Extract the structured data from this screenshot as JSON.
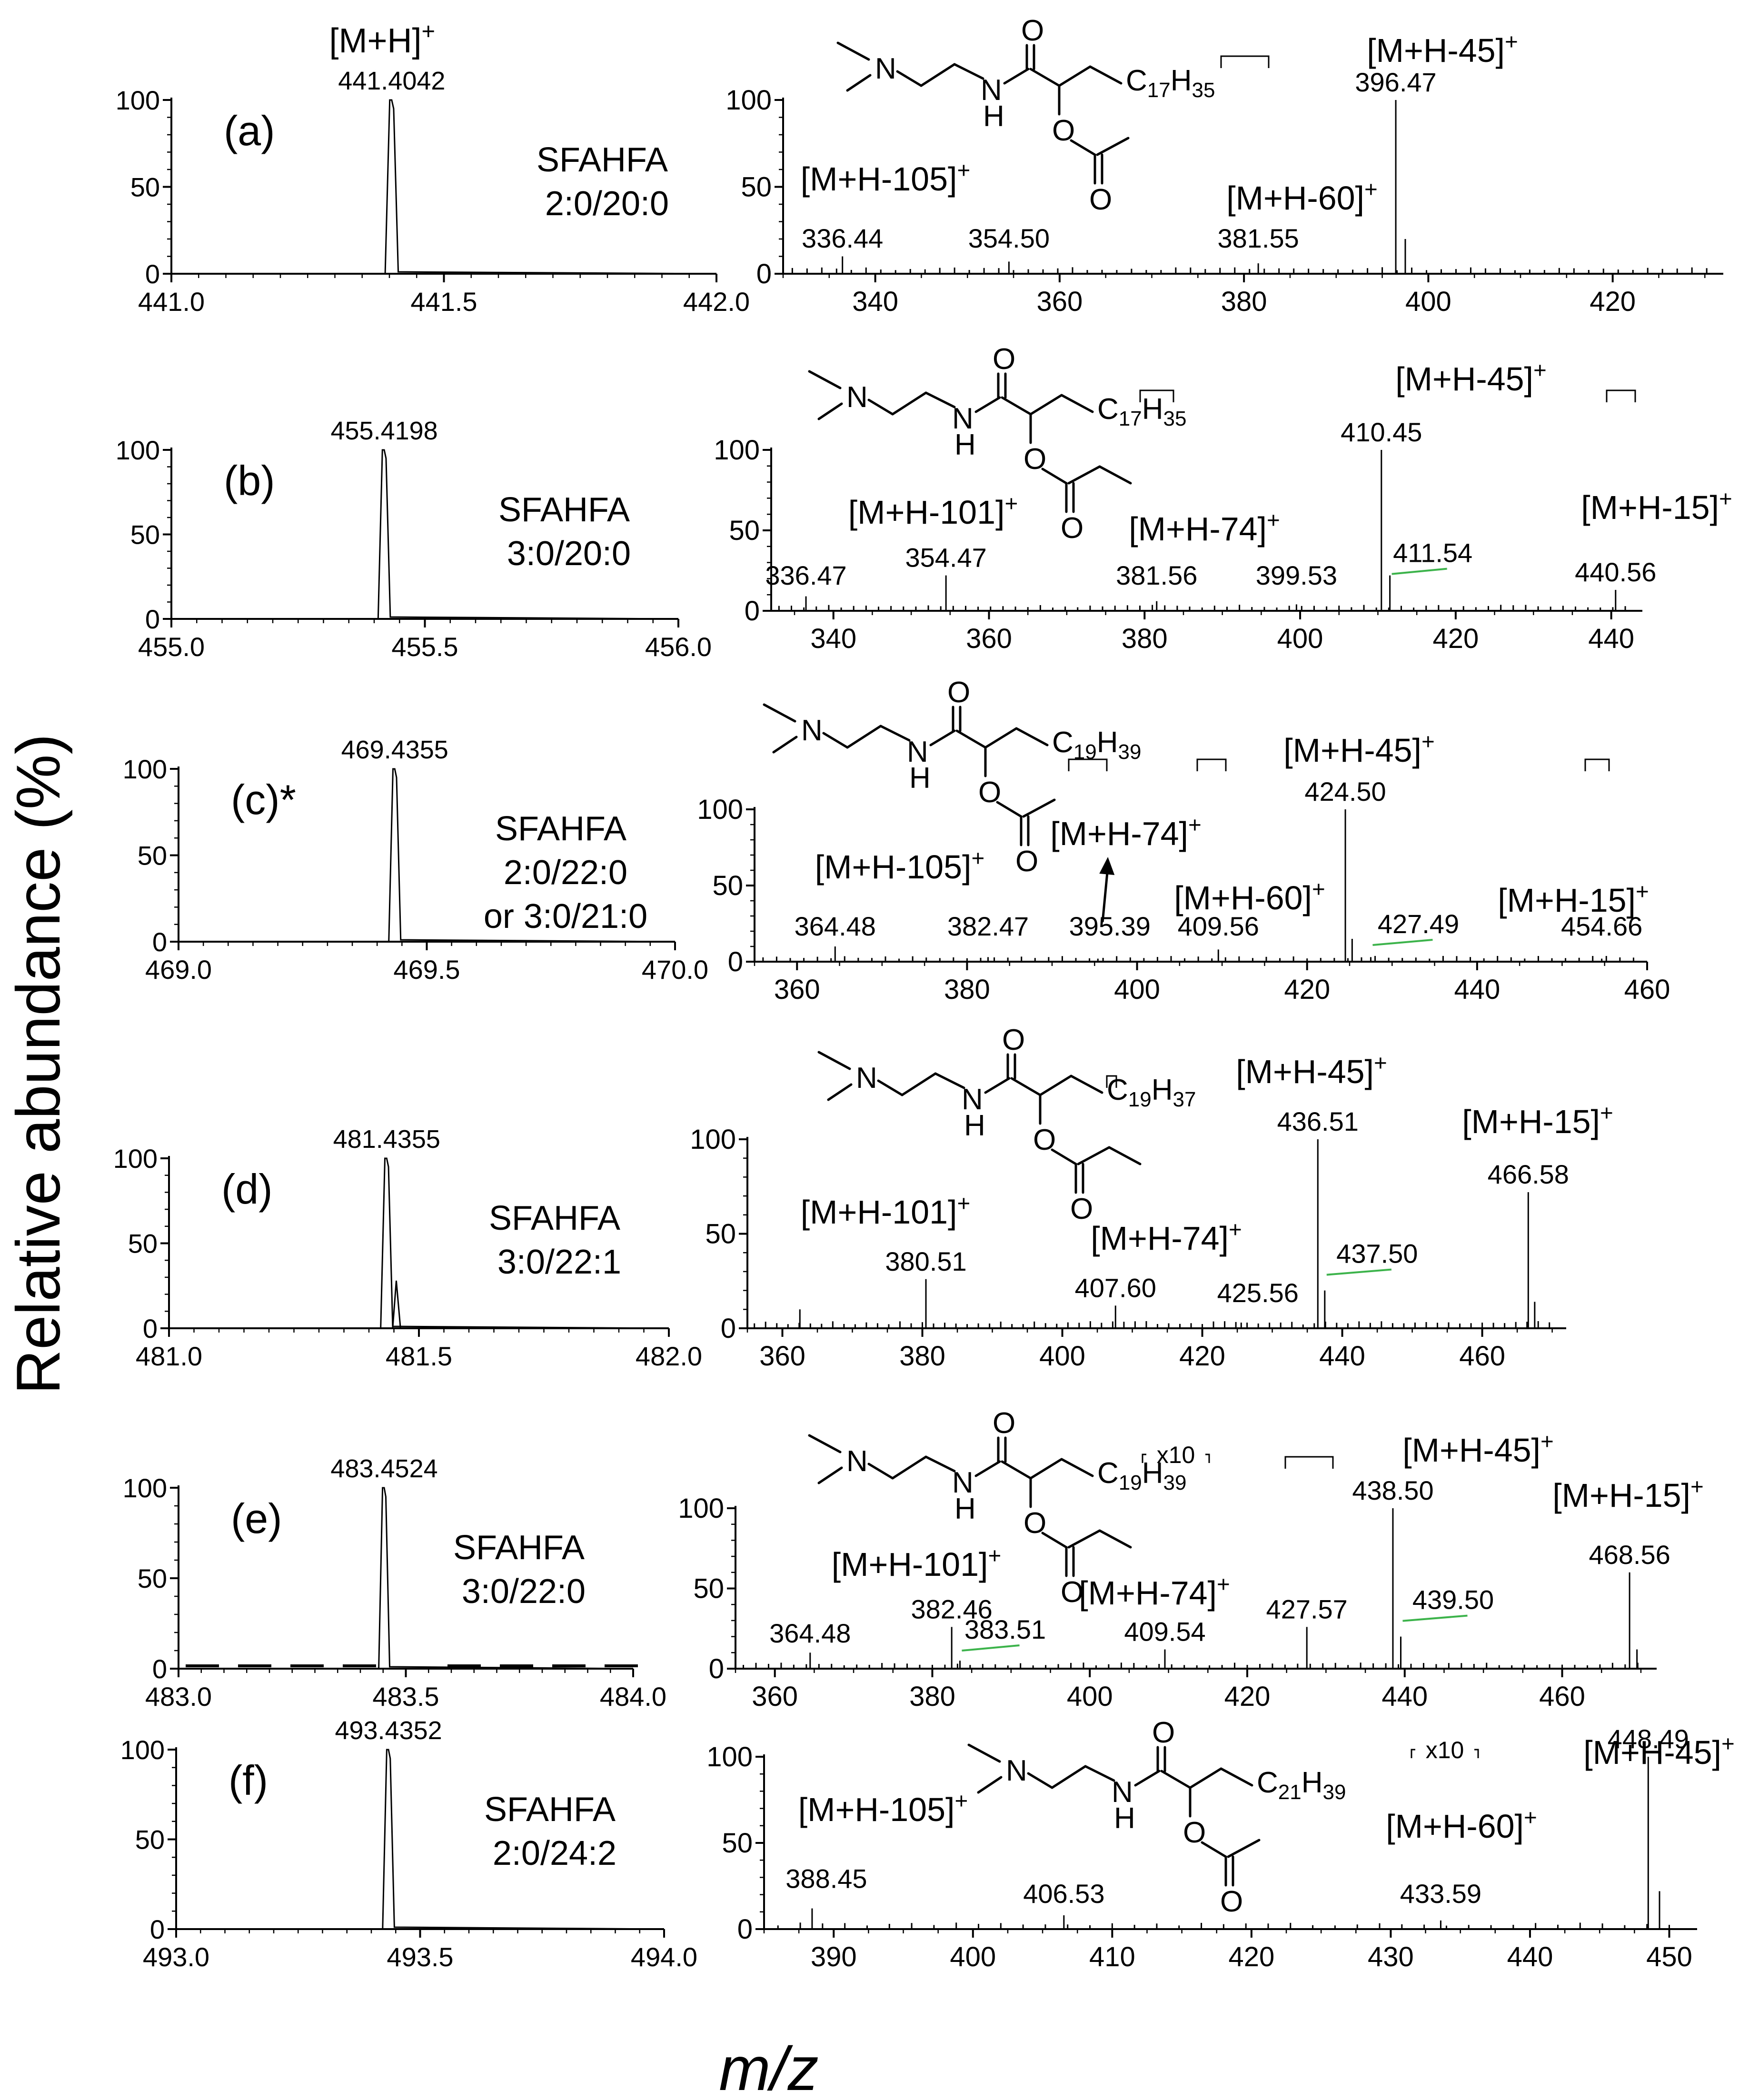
{
  "figure": {
    "ylabel": "Relative abundance (%)",
    "xlabel": "m/z"
  },
  "chart_data": [
    {
      "type": "line",
      "panel": "(a)",
      "view": "precursor",
      "peak_label": "441.4042",
      "ion_label": "[M+H]+",
      "peak_mz": 441.4042,
      "compound": [
        "SFAHFA",
        "2:0/20:0"
      ],
      "xlim": [
        441.0,
        442.0
      ],
      "xticks": [
        "441.0",
        "441.5",
        "442.0"
      ],
      "ylim": [
        0,
        100
      ],
      "yticks": [
        "0",
        "50",
        "100"
      ]
    },
    {
      "type": "bar",
      "panel": "(a)",
      "view": "fragments",
      "xlim": [
        330,
        432
      ],
      "xticks": [
        340,
        360,
        380,
        400,
        420
      ],
      "ylim": [
        0,
        100
      ],
      "yticks": [
        "0",
        "50",
        "100"
      ],
      "structure": {
        "chain": "C17H35",
        "acyl": "acetyl"
      },
      "peaks": [
        {
          "mz": 336.44,
          "intensity": 10,
          "label": "336.44"
        },
        {
          "mz": 354.5,
          "intensity": 7,
          "label": "354.50"
        },
        {
          "mz": 381.55,
          "intensity": 6,
          "label": "381.55"
        },
        {
          "mz": 396.47,
          "intensity": 100,
          "label": "396.47"
        },
        {
          "mz": 397.5,
          "intensity": 20,
          "label": ""
        }
      ],
      "annotations": [
        {
          "text": "[M+H-105]+",
          "mz": 336.44
        },
        {
          "text": "[M+H-60]+",
          "mz": 381.55
        },
        {
          "text": "[M+H-45]+",
          "mz": 396.47
        }
      ]
    },
    {
      "type": "line",
      "panel": "(b)",
      "view": "precursor",
      "peak_label": "455.4198",
      "ion_label": "",
      "peak_mz": 455.4198,
      "compound": [
        "SFAHFA",
        "3:0/20:0"
      ],
      "xlim": [
        455.0,
        456.0
      ],
      "xticks": [
        "455.0",
        "455.5",
        "456.0"
      ],
      "ylim": [
        0,
        100
      ],
      "yticks": [
        "0",
        "50",
        "100"
      ]
    },
    {
      "type": "bar",
      "panel": "(b)",
      "view": "fragments",
      "xlim": [
        332,
        444
      ],
      "xticks": [
        340,
        360,
        380,
        400,
        420,
        440
      ],
      "ylim": [
        0,
        100
      ],
      "yticks": [
        "0",
        "50",
        "100"
      ],
      "structure": {
        "chain": "C17H35",
        "acyl": "propionyl"
      },
      "peaks": [
        {
          "mz": 336.47,
          "intensity": 9,
          "label": "336.47"
        },
        {
          "mz": 354.47,
          "intensity": 22,
          "label": "354.47"
        },
        {
          "mz": 381.56,
          "intensity": 6,
          "label": "381.56"
        },
        {
          "mz": 399.53,
          "intensity": 4,
          "label": "399.53"
        },
        {
          "mz": 410.45,
          "intensity": 100,
          "label": "410.45"
        },
        {
          "mz": 411.54,
          "intensity": 22,
          "label": "411.54"
        },
        {
          "mz": 440.56,
          "intensity": 13,
          "label": "440.56"
        }
      ],
      "annotations": [
        {
          "text": "[M+H-101]+",
          "mz": 354.47
        },
        {
          "text": "[M+H-74]+",
          "mz": 381.56
        },
        {
          "text": "[M+H-45]+",
          "mz": 410.45
        },
        {
          "text": "[M+H-15]+",
          "mz": 440.56
        }
      ]
    },
    {
      "type": "line",
      "panel": "(c)*",
      "view": "precursor",
      "peak_label": "469.4355",
      "ion_label": "",
      "peak_mz": 469.4355,
      "compound": [
        "SFAHFA",
        "2:0/22:0",
        "or 3:0/21:0"
      ],
      "xlim": [
        469.0,
        470.0
      ],
      "xticks": [
        "469.0",
        "469.5",
        "470.0"
      ],
      "ylim": [
        0,
        100
      ],
      "yticks": [
        "0",
        "50",
        "100"
      ]
    },
    {
      "type": "bar",
      "panel": "(c)*",
      "view": "fragments",
      "xlim": [
        355,
        460
      ],
      "xticks": [
        360,
        380,
        400,
        420,
        440,
        460
      ],
      "ylim": [
        0,
        100
      ],
      "yticks": [
        "0",
        "50",
        "100"
      ],
      "structure": {
        "chain": "C19H39",
        "acyl": "acetyl"
      },
      "peaks": [
        {
          "mz": 364.48,
          "intensity": 10,
          "label": "364.48"
        },
        {
          "mz": 382.47,
          "intensity": 3,
          "label": "382.47"
        },
        {
          "mz": 395.39,
          "intensity": 2,
          "label": "395.39"
        },
        {
          "mz": 409.56,
          "intensity": 8,
          "label": "409.56"
        },
        {
          "mz": 424.5,
          "intensity": 100,
          "label": "424.50"
        },
        {
          "mz": 425.3,
          "intensity": 15,
          "label": ""
        },
        {
          "mz": 427.49,
          "intensity": 3,
          "label": "427.49"
        },
        {
          "mz": 454.66,
          "intensity": 2,
          "label": "454.66"
        }
      ],
      "annotations": [
        {
          "text": "[M+H-105]+",
          "mz": 364.48
        },
        {
          "text": "[M+H-74]+",
          "mz": 395.39
        },
        {
          "text": "[M+H-60]+",
          "mz": 409.56
        },
        {
          "text": "[M+H-45]+",
          "mz": 424.5
        },
        {
          "text": "[M+H-15]+",
          "mz": 454.66
        }
      ]
    },
    {
      "type": "line",
      "panel": "(d)",
      "view": "precursor",
      "peak_label": "481.4355",
      "ion_label": "",
      "peak_mz": 481.4355,
      "compound": [
        "SFAHFA",
        "3:0/22:1"
      ],
      "xlim": [
        481.0,
        482.0
      ],
      "xticks": [
        "481.0",
        "481.5",
        "482.0"
      ],
      "ylim": [
        0,
        100
      ],
      "yticks": [
        "0",
        "50",
        "100"
      ]
    },
    {
      "type": "bar",
      "panel": "(d)",
      "view": "fragments",
      "xlim": [
        355,
        472
      ],
      "xticks": [
        360,
        380,
        400,
        420,
        440,
        460
      ],
      "ylim": [
        0,
        100
      ],
      "yticks": [
        "0",
        "50",
        "100"
      ],
      "structure": {
        "chain": "C19H37",
        "acyl": "propionyl"
      },
      "peaks": [
        {
          "mz": 362.5,
          "intensity": 10,
          "label": ""
        },
        {
          "mz": 380.51,
          "intensity": 26,
          "label": "380.51"
        },
        {
          "mz": 407.6,
          "intensity": 12,
          "label": "407.60"
        },
        {
          "mz": 425.56,
          "intensity": 3,
          "label": "425.56"
        },
        {
          "mz": 436.51,
          "intensity": 100,
          "label": "436.51"
        },
        {
          "mz": 437.5,
          "intensity": 20,
          "label": "437.50"
        },
        {
          "mz": 466.58,
          "intensity": 72,
          "label": "466.58"
        },
        {
          "mz": 467.5,
          "intensity": 14,
          "label": ""
        }
      ],
      "annotations": [
        {
          "text": "[M+H-101]+",
          "mz": 380.51
        },
        {
          "text": "[M+H-74]+",
          "mz": 407.6
        },
        {
          "text": "[M+H-45]+",
          "mz": 436.51
        },
        {
          "text": "[M+H-15]+",
          "mz": 466.58
        }
      ]
    },
    {
      "type": "line",
      "panel": "(e)",
      "view": "precursor",
      "peak_label": "483.4524",
      "ion_label": "",
      "peak_mz": 483.4524,
      "compound": [
        "SFAHFA",
        "3:0/22:0"
      ],
      "xlim": [
        483.0,
        484.0
      ],
      "xticks": [
        "483.0",
        "483.5",
        "484.0"
      ],
      "ylim": [
        0,
        100
      ],
      "yticks": [
        "0",
        "50",
        "100"
      ]
    },
    {
      "type": "bar",
      "panel": "(e)",
      "view": "fragments",
      "xlim": [
        355,
        472
      ],
      "xticks": [
        360,
        380,
        400,
        420,
        440,
        460
      ],
      "ylim": [
        0,
        100
      ],
      "yticks": [
        "0",
        "50",
        "100"
      ],
      "structure": {
        "chain": "C19H39",
        "acyl": "propionyl"
      },
      "zoom_label": "x10",
      "peaks": [
        {
          "mz": 364.48,
          "intensity": 10,
          "label": "364.48"
        },
        {
          "mz": 382.46,
          "intensity": 26,
          "label": "382.46"
        },
        {
          "mz": 383.51,
          "intensity": 5,
          "label": "383.51"
        },
        {
          "mz": 409.54,
          "intensity": 12,
          "label": "409.54"
        },
        {
          "mz": 427.57,
          "intensity": 26,
          "label": "427.57"
        },
        {
          "mz": 438.5,
          "intensity": 100,
          "label": "438.50"
        },
        {
          "mz": 439.5,
          "intensity": 20,
          "label": "439.50"
        },
        {
          "mz": 468.56,
          "intensity": 60,
          "label": "468.56"
        },
        {
          "mz": 469.5,
          "intensity": 12,
          "label": ""
        }
      ],
      "annotations": [
        {
          "text": "[M+H-101]+",
          "mz": 382.46
        },
        {
          "text": "[M+H-74]+",
          "mz": 409.54
        },
        {
          "text": "[M+H-45]+",
          "mz": 438.5
        },
        {
          "text": "[M+H-15]+",
          "mz": 468.56
        }
      ]
    },
    {
      "type": "line",
      "panel": "(f)",
      "view": "precursor",
      "peak_label": "493.4352",
      "ion_label": "",
      "peak_mz": 493.4352,
      "compound": [
        "SFAHFA",
        "2:0/24:2"
      ],
      "xlim": [
        493.0,
        494.0
      ],
      "xticks": [
        "493.0",
        "493.5",
        "494.0"
      ],
      "ylim": [
        0,
        100
      ],
      "yticks": [
        "0",
        "50",
        "100"
      ]
    },
    {
      "type": "bar",
      "panel": "(f)",
      "view": "fragments",
      "xlim": [
        385,
        452
      ],
      "xticks": [
        390,
        400,
        410,
        420,
        430,
        440,
        450
      ],
      "ylim": [
        0,
        100
      ],
      "yticks": [
        "0",
        "50",
        "100"
      ],
      "structure": {
        "chain": "C21H39",
        "acyl": "acetyl"
      },
      "zoom_label": "x10",
      "peaks": [
        {
          "mz": 388.45,
          "intensity": 12,
          "label": "388.45"
        },
        {
          "mz": 406.53,
          "intensity": 8,
          "label": "406.53"
        },
        {
          "mz": 433.59,
          "intensity": 5,
          "label": "433.59"
        },
        {
          "mz": 448.49,
          "intensity": 100,
          "label": "448.49"
        },
        {
          "mz": 449.3,
          "intensity": 22,
          "label": ""
        }
      ],
      "annotations": [
        {
          "text": "[M+H-105]+",
          "mz": 388.45
        },
        {
          "text": "[M+H-60]+",
          "mz": 433.59
        },
        {
          "text": "[M+H-45]+",
          "mz": 448.49
        }
      ]
    }
  ]
}
